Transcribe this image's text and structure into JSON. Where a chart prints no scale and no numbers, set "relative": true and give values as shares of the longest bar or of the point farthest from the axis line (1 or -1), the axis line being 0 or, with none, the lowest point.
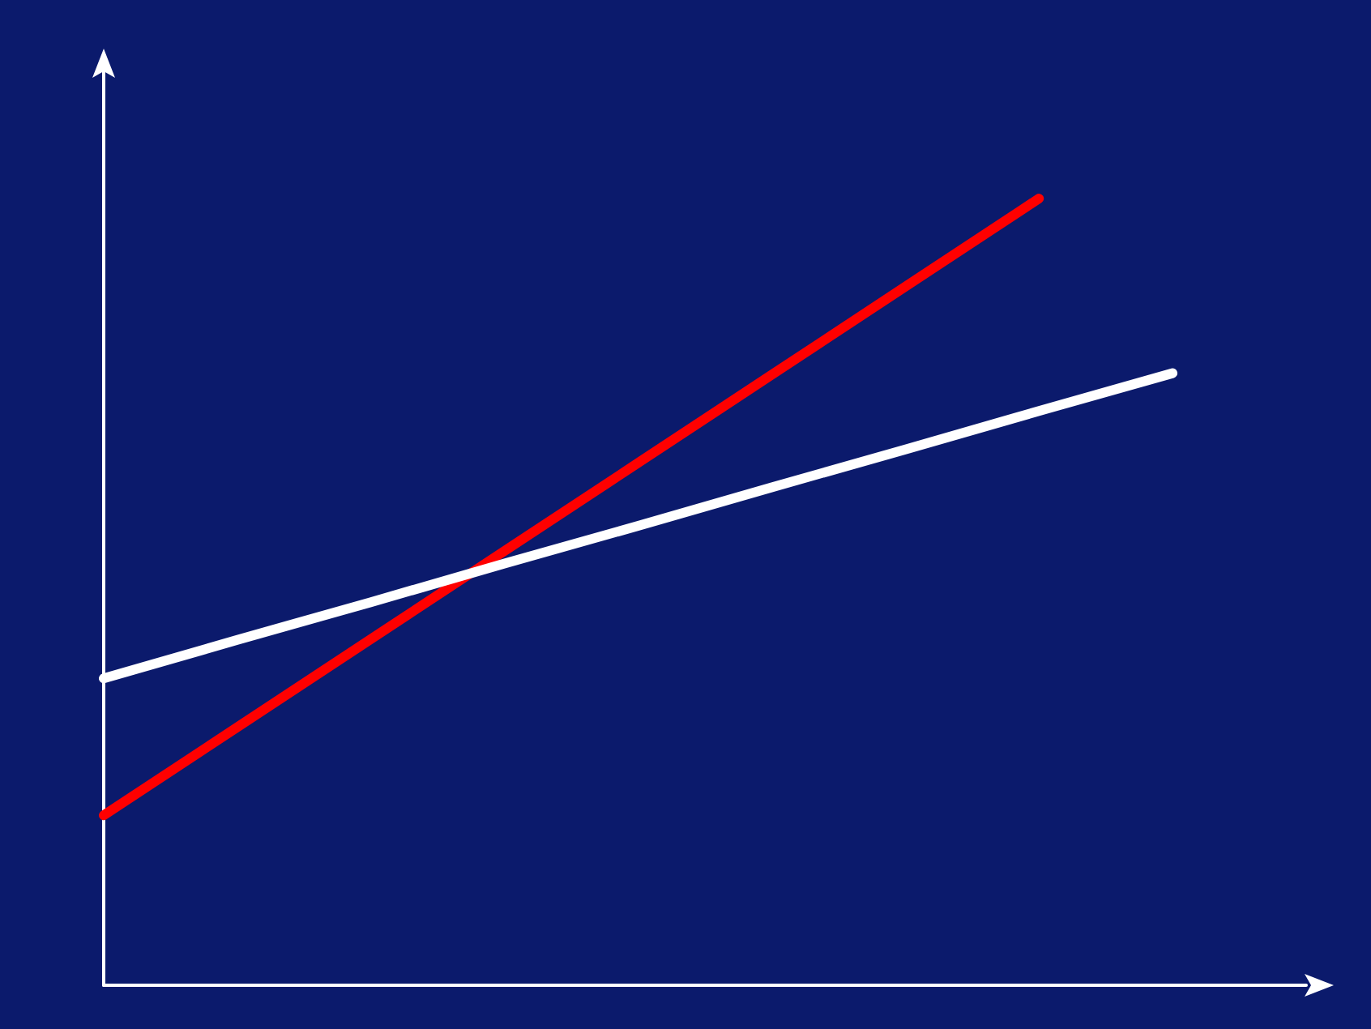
{
  "chart_data": {
    "type": "line",
    "relative": true,
    "categories": [
      null,
      null,
      null,
      null,
      null,
      null,
      null,
      null,
      null,
      null
    ],
    "series": [
      {
        "color": "#ff0000",
        "values": [
          0.216,
          0.328,
          0.44,
          0.552,
          0.664,
          0.776,
          0.888,
          1.0,
          null,
          null
        ]
      },
      {
        "color": "#ffffff",
        "values": [
          0.39,
          0.439,
          0.487,
          0.536,
          0.584,
          0.633,
          0.681,
          0.73,
          0.778,
          null
        ]
      }
    ],
    "grid": false,
    "marker": "none",
    "line_style": "solid"
  }
}
